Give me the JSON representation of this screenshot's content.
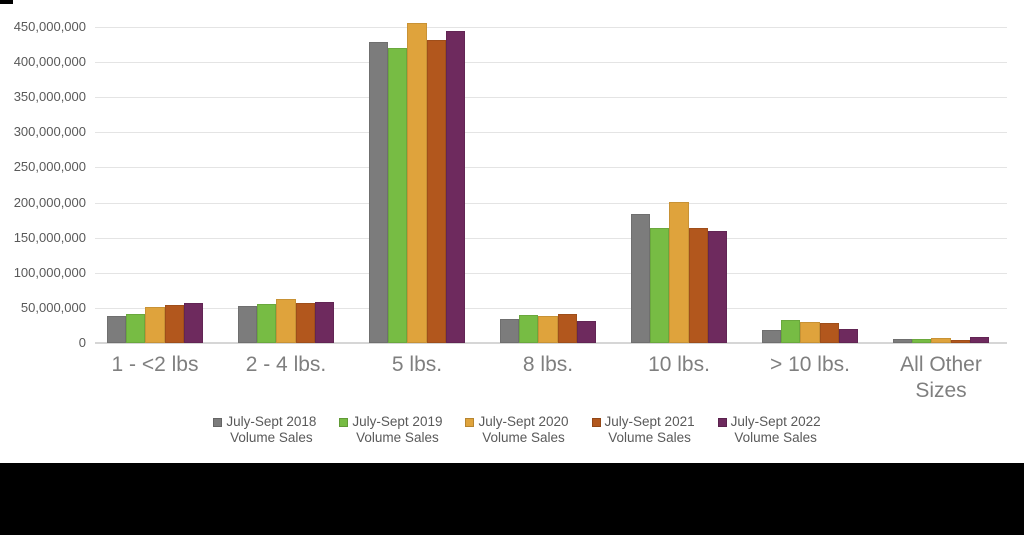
{
  "page": {
    "background_color": "#ffffff",
    "footer_band_color": "#000000",
    "corner_mark_color": "#000000"
  },
  "colors": {
    "gridline": "#e4e4e4",
    "axis_baseline": "#d6d6d6",
    "ytick_text": "#595959",
    "category_text": "#7f7f7f",
    "legend_text": "#595959"
  },
  "chart_data": {
    "type": "bar",
    "title": "",
    "xlabel": "",
    "ylabel": "",
    "grid": "horizontal",
    "legend_position": "bottom",
    "ylim": [
      0,
      450000000
    ],
    "ytick_step": 50000000,
    "ytick_labels": [
      "0",
      "50,000,000",
      "100,000,000",
      "150,000,000",
      "200,000,000",
      "250,000,000",
      "300,000,000",
      "350,000,000",
      "400,000,000",
      "450,000,000"
    ],
    "categories": [
      "1 - <2 lbs",
      "2 - 4 lbs.",
      "5 lbs.",
      "8 lbs.",
      "10 lbs.",
      "> 10 lbs.",
      "All Other Sizes"
    ],
    "series": [
      {
        "name": "July-Sept 2018 Volume Sales",
        "legend_lines": [
          "July-Sept 2018",
          "Volume Sales"
        ],
        "color": "#7c7c7c",
        "values": [
          38000000,
          52000000,
          428000000,
          34000000,
          184000000,
          19000000,
          5000000
        ]
      },
      {
        "name": "July-Sept 2019 Volume Sales",
        "legend_lines": [
          "July-Sept 2019",
          "Volume Sales"
        ],
        "color": "#77bc44",
        "values": [
          41000000,
          55000000,
          420000000,
          40000000,
          164000000,
          33000000,
          5000000
        ]
      },
      {
        "name": "July-Sept 2020 Volume Sales",
        "legend_lines": [
          "July-Sept 2020",
          "Volume Sales"
        ],
        "color": "#dfa33c",
        "values": [
          51000000,
          63000000,
          455000000,
          38000000,
          201000000,
          30000000,
          7000000
        ]
      },
      {
        "name": "July-Sept 2021 Volume Sales",
        "legend_lines": [
          "July-Sept 2021",
          "Volume Sales"
        ],
        "color": "#b2571d",
        "values": [
          54000000,
          57000000,
          431000000,
          41000000,
          164000000,
          28000000,
          4000000
        ]
      },
      {
        "name": "July-Sept 2022 Volume Sales",
        "legend_lines": [
          "July-Sept 2022",
          "Volume Sales"
        ],
        "color": "#6e2a5e",
        "values": [
          57000000,
          59000000,
          445000000,
          31000000,
          160000000,
          20000000,
          8000000
        ]
      }
    ]
  }
}
